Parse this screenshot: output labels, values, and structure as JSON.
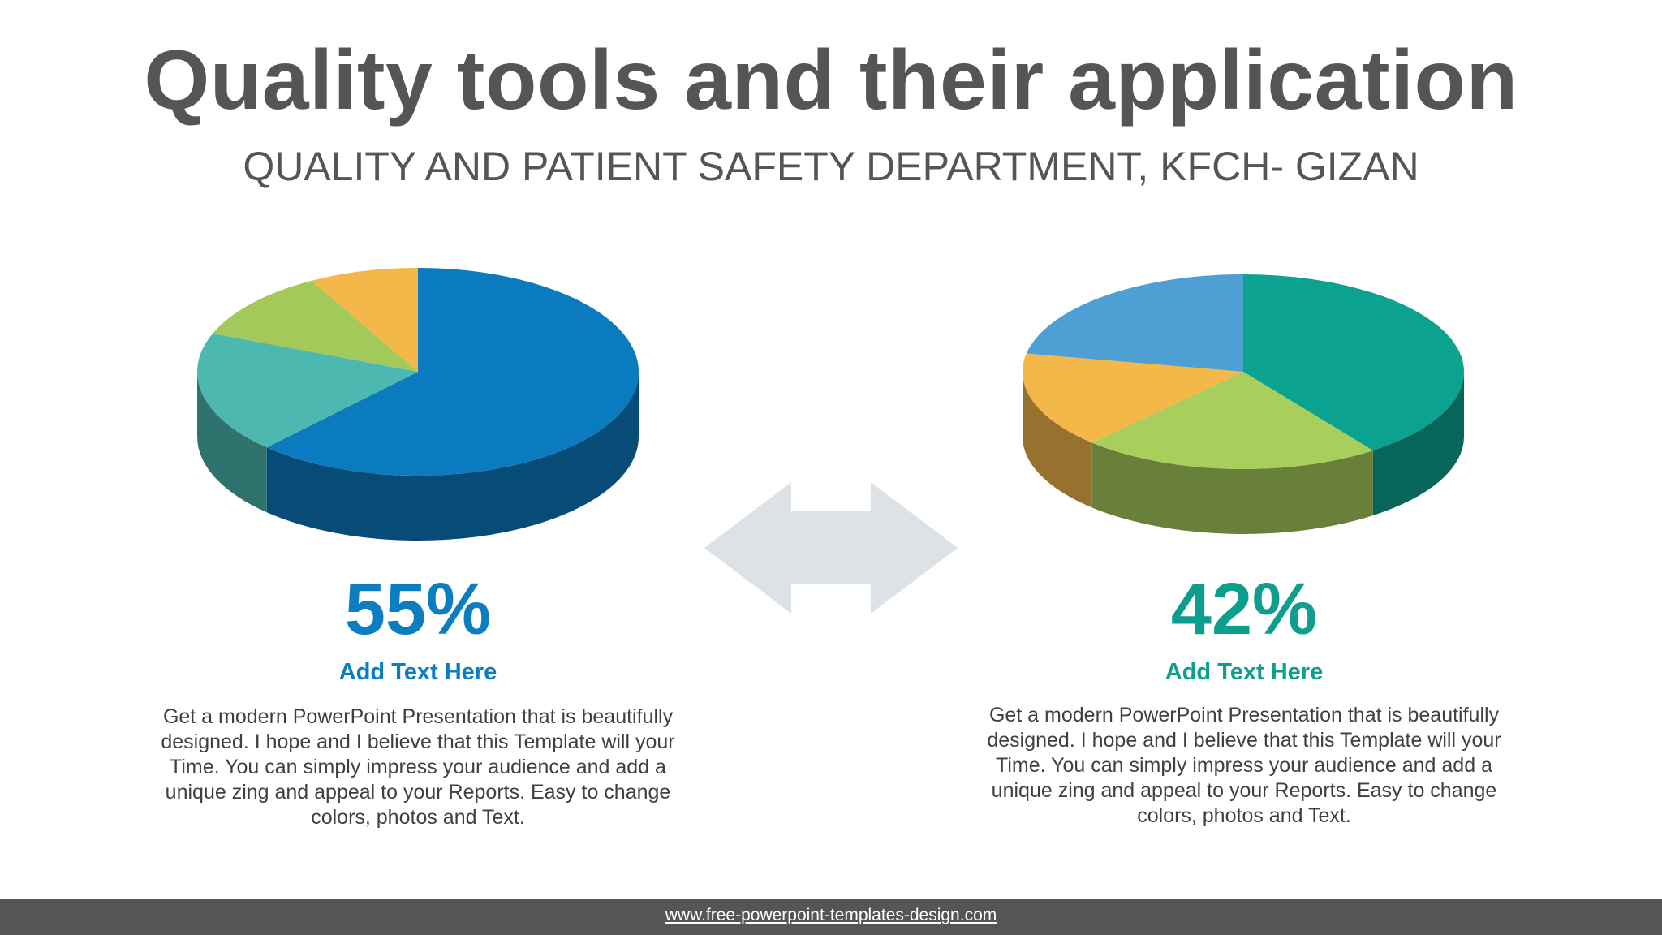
{
  "header": {
    "title": "Quality tools and their application",
    "subtitle": "QUALITY AND PATIENT SAFETY DEPARTMENT, KFCH- GIZAN"
  },
  "colors": {
    "title_text": "#555555",
    "left_accent": "#0B7DC1",
    "right_accent": "#0E9E8E",
    "arrow": "#DDE2E7",
    "footer_bar": "#555555"
  },
  "chart_data": [
    {
      "type": "pie",
      "style": "3d",
      "slices": [
        {
          "label": "",
          "value": 62,
          "color": "#0B7BC0"
        },
        {
          "label": "",
          "value": 19,
          "color": "#4DB8B0"
        },
        {
          "label": "",
          "value": 11,
          "color": "#A2C95A"
        },
        {
          "label": "",
          "value": 8,
          "color": "#F4B74A"
        }
      ]
    },
    {
      "type": "pie",
      "style": "3d",
      "slices": [
        {
          "label": "",
          "value": 40,
          "color": "#0BA390"
        },
        {
          "label": "",
          "value": 22,
          "color": "#A8CF5C"
        },
        {
          "label": "",
          "value": 16,
          "color": "#F4B74A"
        },
        {
          "label": "",
          "value": 22,
          "color": "#4E9FD4"
        }
      ]
    }
  ],
  "panels": [
    {
      "percent": "55%",
      "caption": "Add Text  Here",
      "body": "Get a modern PowerPoint  Presentation that is beautifully designed.  I hope and I believe that this Template will your Time. You can simply impress your audience and add a unique zing and appeal to your Reports. Easy to change colors, photos and Text."
    },
    {
      "percent": "42%",
      "caption": "Add Text  Here",
      "body": "Get a modern PowerPoint  Presentation that is beautifully designed.  I hope and I believe that this Template will your Time. You can simply impress your audience and add a unique zing and appeal to your Reports. Easy to change colors, photos and Text."
    }
  ],
  "footer": {
    "link": "www.free-powerpoint-templates-design.com"
  }
}
